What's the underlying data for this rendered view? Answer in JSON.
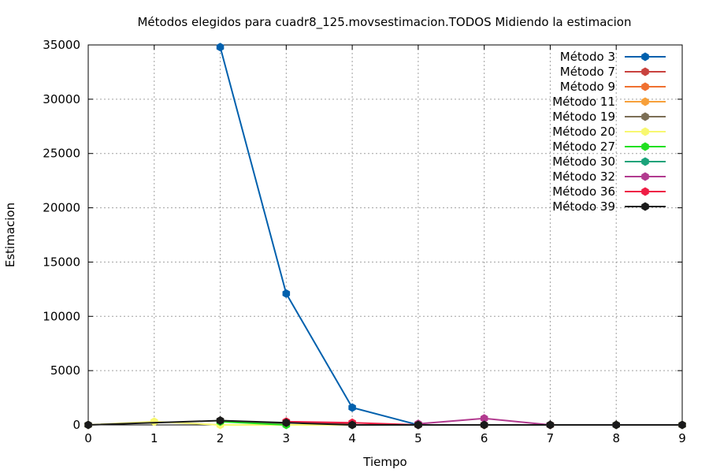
{
  "chart_data": {
    "type": "line",
    "title": "Métodos elegidos para cuadr8_125.movsestimacion.TODOS Midiendo la estimacion",
    "xlabel": "Tiempo",
    "ylabel": "Estimacion",
    "xlim": [
      0,
      9
    ],
    "ylim": [
      0,
      35000
    ],
    "x_ticks": [
      0,
      1,
      2,
      3,
      4,
      5,
      6,
      7,
      8,
      9
    ],
    "y_ticks": [
      0,
      5000,
      10000,
      15000,
      20000,
      25000,
      30000,
      35000
    ],
    "grid": true,
    "legend_position": "top-right",
    "series": [
      {
        "name": "Método 3",
        "color": "#0060ad",
        "points": [
          [
            2,
            34800
          ],
          [
            3,
            12100
          ],
          [
            4,
            1600
          ],
          [
            5,
            0
          ]
        ]
      },
      {
        "name": "Método 7",
        "color": "#c9423e",
        "points": [
          [
            3,
            300
          ],
          [
            4,
            100
          ]
        ]
      },
      {
        "name": "Método 9",
        "color": "#f07030",
        "points": [
          [
            5,
            0
          ],
          [
            6,
            0
          ]
        ]
      },
      {
        "name": "Método 11",
        "color": "#f7a03a",
        "points": [
          [
            6,
            0
          ],
          [
            7,
            0
          ]
        ]
      },
      {
        "name": "Método 19",
        "color": "#7b6e55",
        "points": [
          [
            2,
            400
          ],
          [
            3,
            50
          ]
        ]
      },
      {
        "name": "Método 20",
        "color": "#f8f870",
        "points": [
          [
            0,
            0
          ],
          [
            1,
            300
          ],
          [
            2,
            0
          ],
          [
            7,
            0
          ],
          [
            8,
            0
          ],
          [
            9,
            0
          ]
        ]
      },
      {
        "name": "Método 27",
        "color": "#21e021",
        "points": [
          [
            2,
            300
          ],
          [
            3,
            0
          ]
        ]
      },
      {
        "name": "Método 30",
        "color": "#1aa37a",
        "points": [
          [
            4,
            0
          ],
          [
            5,
            0
          ]
        ]
      },
      {
        "name": "Método 32",
        "color": "#b23a8f",
        "points": [
          [
            5,
            100
          ],
          [
            6,
            600
          ],
          [
            7,
            0
          ]
        ]
      },
      {
        "name": "Método 36",
        "color": "#ef1e45",
        "points": [
          [
            3,
            300
          ],
          [
            4,
            200
          ],
          [
            5,
            0
          ]
        ]
      },
      {
        "name": "Método 39",
        "color": "#1a1a1a",
        "points": [
          [
            0,
            0
          ],
          [
            2,
            400
          ],
          [
            3,
            200
          ],
          [
            4,
            0
          ],
          [
            5,
            0
          ],
          [
            6,
            0
          ],
          [
            7,
            0
          ],
          [
            8,
            0
          ],
          [
            9,
            0
          ]
        ]
      }
    ]
  }
}
